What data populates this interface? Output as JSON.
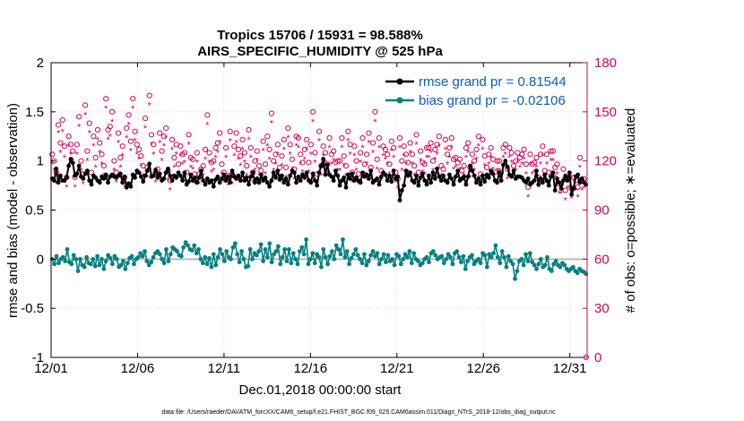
{
  "colors": {
    "rmse": "#000000",
    "bias": "#008080",
    "obs": "#d6005a",
    "zero_line": "#bbbbbb",
    "grid": "#f4c4d4",
    "legend_text": "#0a5cc2"
  },
  "chart_data": {
    "type": "line",
    "title": "Tropics 15706 / 15931 = 98.588%",
    "subtitle": "AIRS_SPECIFIC_HUMIDITY @ 525 hPa",
    "xlabel": "Dec.01,2018 00:00:00 start",
    "ylabel_left": "rmse and bias (model - observation)",
    "ylabel_right": "# of obs: o=possible; ∗=evaluated",
    "footnote": "data file: /Users/raeder/DAI/ATM_forcXX/CAM6_setup/f.e21.FHIST_BGC.f09_025.CAM6assim.011/Diags_NTrS_2018-12/obs_diag_output.nc",
    "xlim": [
      0,
      31
    ],
    "ylim_left": [
      -1,
      2
    ],
    "ylim_right": [
      0,
      180
    ],
    "x_ticks": [
      0,
      5,
      10,
      15,
      20,
      25,
      30
    ],
    "x_tick_labels": [
      "12/01",
      "12/06",
      "12/11",
      "12/16",
      "12/21",
      "12/26",
      "12/31"
    ],
    "y_left_ticks": [
      -1,
      -0.5,
      0,
      0.5,
      1,
      1.5,
      2
    ],
    "y_left_tick_labels": [
      "-1",
      "-0.5",
      "0",
      "0.5",
      "1",
      "1.5",
      "2"
    ],
    "y_right_ticks": [
      0,
      30,
      60,
      90,
      120,
      150,
      180
    ],
    "y_right_tick_labels": [
      "0",
      "30",
      "60",
      "90",
      "120",
      "150",
      "180"
    ],
    "legend": [
      {
        "name": "rmse grand pr = 0.81544",
        "series": "rmse"
      },
      {
        "name": "bias grand pr = -0.02106",
        "series": "bias"
      }
    ],
    "series": [
      {
        "name": "rmse",
        "axis": "left",
        "values": [
          0.82,
          0.8,
          0.92,
          0.78,
          0.85,
          0.8,
          0.8,
          0.83,
          0.95,
          1.02,
          0.98,
          0.85,
          0.87,
          0.95,
          0.84,
          0.82,
          0.87,
          0.9,
          0.8,
          0.76,
          0.85,
          0.83,
          0.8,
          0.78,
          0.84,
          0.82,
          0.86,
          0.78,
          0.84,
          0.86,
          0.84,
          0.83,
          0.85,
          0.87,
          0.78,
          0.84,
          0.73,
          0.77,
          0.74,
          0.86,
          0.83,
          0.9,
          0.88,
          0.84,
          0.79,
          0.85,
          0.9,
          0.97,
          0.84,
          0.85,
          0.91,
          0.83,
          0.87,
          0.8,
          0.82,
          0.88,
          0.92,
          0.85,
          0.8,
          0.85,
          0.83,
          0.88,
          0.85,
          0.8,
          0.88,
          0.76,
          0.79,
          0.86,
          0.8,
          0.83,
          0.78,
          0.83,
          0.9,
          0.8,
          0.76,
          0.82,
          0.78,
          0.8,
          0.74,
          0.81,
          0.84,
          0.78,
          0.82,
          0.86,
          0.8,
          0.84,
          0.78,
          0.9,
          0.84,
          0.82,
          0.85,
          0.8,
          0.88,
          0.8,
          0.83,
          0.76,
          0.84,
          0.88,
          0.78,
          0.82,
          0.78,
          0.86,
          0.8,
          0.83,
          0.78,
          0.74,
          0.8,
          0.88,
          0.83,
          0.9,
          0.81,
          0.85,
          0.78,
          0.82,
          0.76,
          0.85,
          0.9,
          0.88,
          0.78,
          0.84,
          0.8,
          0.86,
          0.83,
          0.88,
          0.8,
          0.78,
          0.87,
          0.8,
          0.75,
          0.88,
          0.95,
          1.02,
          0.86,
          0.96,
          0.86,
          0.84,
          0.8,
          0.9,
          0.85,
          0.75,
          0.8,
          0.83,
          0.73,
          0.86,
          0.82,
          0.87,
          0.8,
          0.83,
          0.8,
          0.78,
          0.88,
          0.84,
          0.86,
          0.82,
          0.9,
          0.78,
          0.8,
          0.82,
          0.76,
          0.84,
          0.88,
          0.86,
          0.8,
          0.85,
          0.79,
          0.9,
          0.82,
          0.84,
          0.6,
          0.7,
          0.75,
          0.9,
          0.85,
          0.88,
          0.8,
          0.78,
          0.85,
          0.75,
          0.83,
          0.87,
          0.8,
          0.76,
          0.85,
          0.78,
          0.88,
          0.82,
          0.92,
          0.84,
          0.8,
          0.85,
          0.8,
          0.78,
          0.86,
          0.82,
          0.76,
          0.84,
          0.9,
          0.8,
          0.82,
          0.84,
          0.76,
          0.84,
          0.95,
          0.9,
          0.85,
          0.78,
          0.82,
          0.76,
          0.85,
          0.79,
          0.86,
          0.83,
          0.9,
          0.87,
          0.8,
          0.78,
          0.88,
          0.8,
          0.96,
          1.0,
          0.94,
          0.86,
          0.84,
          0.9,
          0.82,
          0.84,
          0.84,
          0.83,
          0.8,
          0.78,
          0.82,
          0.76,
          0.78,
          0.8,
          0.9,
          0.76,
          0.82,
          0.78,
          0.86,
          0.8,
          0.75,
          0.84,
          0.88,
          0.7,
          0.82,
          0.78,
          0.72,
          0.8,
          0.85,
          0.8,
          0.88,
          0.66,
          0.72,
          0.84,
          0.86,
          0.78,
          0.82,
          0.78,
          0.76
        ]
      },
      {
        "name": "bias",
        "axis": "left",
        "values": [
          0.0,
          -0.05,
          0.03,
          -0.04,
          0.0,
          0.02,
          -0.02,
          0.1,
          -0.03,
          -0.05,
          0.04,
          0.0,
          -0.12,
          0.0,
          -0.06,
          -0.08,
          0.02,
          -0.04,
          -0.05,
          0.0,
          -0.07,
          0.03,
          -0.06,
          0.0,
          -0.1,
          -0.02,
          0.04,
          0.01,
          -0.05,
          0.03,
          0.0,
          -0.08,
          -0.06,
          -0.02,
          -0.1,
          -0.04,
          0.01,
          0.03,
          -0.05,
          0.0,
          0.02,
          0.06,
          0.03,
          0.08,
          -0.02,
          -0.06,
          -0.03,
          0.02,
          0.06,
          0.08,
          0.05,
          0.0,
          -0.04,
          0.1,
          -0.02,
          0.05,
          0.12,
          0.1,
          0.08,
          0.04,
          0.03,
          0.12,
          0.17,
          0.14,
          0.1,
          0.09,
          0.14,
          0.06,
          0.1,
          0.0,
          -0.04,
          0.02,
          -0.05,
          0.01,
          -0.08,
          0.05,
          -0.06,
          0.02,
          0.1,
          0.05,
          -0.02,
          0.08,
          0.02,
          0.0,
          0.12,
          0.16,
          0.05,
          -0.03,
          0.08,
          0.0,
          -0.08,
          -0.07,
          0.1,
          0.0,
          0.06,
          0.04,
          0.08,
          0.15,
          -0.02,
          0.1,
          0.02,
          0.16,
          -0.03,
          0.05,
          0.08,
          0.13,
          -0.05,
          0.02,
          0.1,
          -0.02,
          0.1,
          -0.04,
          0.06,
          0.0,
          -0.05,
          0.08,
          0.12,
          0.05,
          0.2,
          -0.05,
          0.0,
          0.06,
          -0.04,
          0.05,
          0.02,
          -0.08,
          0.1,
          0.02,
          -0.05,
          0.03,
          0.08,
          0.0,
          0.14,
          0.1,
          0.05,
          0.2,
          0.02,
          0.08,
          -0.05,
          0.01,
          0.05,
          0.1,
          0.04,
          0.0,
          -0.04,
          0.05,
          -0.06,
          -0.02,
          0.04,
          0.08,
          0.03,
          0.06,
          -0.05,
          0.0,
          0.05,
          -0.03,
          0.04,
          -0.02,
          0.0,
          -0.06,
          0.05,
          0.03,
          -0.05,
          0.0,
          0.05,
          0.02,
          0.08,
          -0.04,
          0.06,
          0.0,
          -0.02,
          -0.06,
          -0.04,
          0.0,
          0.02,
          -0.03,
          0.06,
          0.08,
          0.04,
          0.0,
          0.02,
          0.03,
          -0.04,
          0.0,
          0.05,
          0.02,
          -0.05,
          0.06,
          0.08,
          0.02,
          -0.03,
          0.03,
          -0.1,
          -0.02,
          0.02,
          0.04,
          -0.05,
          -0.02,
          0.0,
          -0.04,
          0.06,
          0.04,
          -0.08,
          0.05,
          0.02,
          0.06,
          0.14,
          0.02,
          -0.04,
          0.08,
          0.02,
          -0.08,
          0.03,
          -0.02,
          -0.05,
          -0.2,
          -0.12,
          -0.02,
          0.0,
          -0.06,
          0.05,
          -0.02,
          0.06,
          -0.03,
          -0.06,
          -0.1,
          -0.05,
          0.0,
          -0.08,
          -0.06,
          0.02,
          -0.1,
          -0.12,
          -0.05,
          -0.02,
          -0.06,
          -0.08,
          -0.04,
          -0.06,
          -0.1,
          -0.12,
          -0.1,
          -0.08,
          -0.12,
          -0.14,
          -0.1,
          -0.12,
          -0.13,
          -0.15
        ]
      },
      {
        "name": "possible obs",
        "axis": "right",
        "values": [
          124,
          120,
          113,
          142,
          131,
          145,
          129,
          110,
          135,
          130,
          126,
          110,
          130,
          147,
          120,
          112,
          154,
          126,
          143,
          113,
          135,
          122,
          139,
          131,
          124,
          117,
          158,
          139,
          141,
          150,
          120,
          113,
          137,
          122,
          129,
          110,
          140,
          148,
          132,
          158,
          138,
          130,
          127,
          123,
          117,
          146,
          116,
          160,
          136,
          130,
          113,
          115,
          137,
          126,
          135,
          140,
          114,
          108,
          133,
          122,
          130,
          118,
          129,
          124,
          125,
          113,
          136,
          122,
          121,
          112,
          125,
          112,
          115,
          117,
          127,
          148,
          125,
          119,
          120,
          128,
          131,
          137,
          118,
          113,
          128,
          111,
          138,
          112,
          129,
          137,
          127,
          123,
          133,
          125,
          117,
          139,
          128,
          113,
          120,
          126,
          117,
          114,
          132,
          118,
          135,
          127,
          149,
          120,
          124,
          130,
          116,
          123,
          133,
          116,
          140,
          130,
          121,
          115,
          135,
          134,
          124,
          119,
          127,
          133,
          119,
          130,
          150,
          125,
          112,
          138,
          117,
          129,
          125,
          118,
          134,
          124,
          126,
          119,
          120,
          120,
          134,
          123,
          117,
          138,
          130,
          113,
          129,
          120,
          112,
          125,
          134,
          118,
          124,
          137,
          116,
          131,
          150,
          121,
          134,
          114,
          129,
          127,
          124,
          118,
          132,
          128,
          113,
          109,
          134,
          120,
          129,
          124,
          119,
          131,
          124,
          117,
          136,
          113,
          126,
          119,
          118,
          128,
          128,
          131,
          120,
          127,
          130,
          135,
          117,
          115,
          133,
          124,
          128,
          134,
          121,
          122,
          119,
          121,
          114,
          117,
          128,
          131,
          116,
          124,
          120,
          127,
          135,
          112,
          133,
          123,
          116,
          124,
          128,
          121,
          113,
          120,
          120,
          113,
          128,
          130,
          115,
          128,
          125,
          117,
          120,
          125,
          122,
          124,
          127,
          118,
          104,
          124,
          118,
          119,
          122,
          110,
          124,
          129,
          114,
          124,
          113,
          126,
          126,
          116,
          118,
          106,
          106,
          115,
          102,
          109,
          110,
          103,
          110,
          108,
          104,
          122,
          108,
          109,
          0
        ]
      },
      {
        "name": "evaluated obs",
        "axis": "right",
        "values": [
          118,
          114,
          106,
          137,
          125,
          138,
          122,
          104,
          129,
          124,
          120,
          104,
          124,
          141,
          114,
          106,
          148,
          120,
          137,
          107,
          129,
          116,
          133,
          125,
          118,
          111,
          152,
          133,
          135,
          144,
          114,
          107,
          131,
          116,
          123,
          104,
          134,
          142,
          126,
          152,
          132,
          124,
          121,
          117,
          111,
          140,
          110,
          154,
          130,
          124,
          107,
          109,
          131,
          120,
          129,
          134,
          108,
          102,
          127,
          116,
          124,
          112,
          123,
          118,
          119,
          107,
          130,
          116,
          115,
          106,
          119,
          106,
          109,
          111,
          121,
          142,
          119,
          113,
          114,
          122,
          125,
          131,
          112,
          107,
          122,
          105,
          132,
          106,
          123,
          131,
          121,
          117,
          127,
          119,
          111,
          133,
          122,
          107,
          114,
          120,
          111,
          108,
          126,
          112,
          129,
          121,
          143,
          114,
          118,
          124,
          110,
          117,
          127,
          110,
          134,
          124,
          115,
          109,
          129,
          128,
          118,
          113,
          121,
          127,
          113,
          124,
          144,
          119,
          106,
          132,
          111,
          123,
          119,
          112,
          128,
          118,
          120,
          113,
          114,
          114,
          128,
          117,
          111,
          132,
          124,
          107,
          123,
          114,
          106,
          119,
          128,
          112,
          118,
          131,
          110,
          125,
          144,
          115,
          128,
          108,
          123,
          121,
          118,
          112,
          126,
          122,
          107,
          103,
          128,
          114,
          123,
          118,
          113,
          125,
          118,
          111,
          130,
          107,
          120,
          113,
          112,
          122,
          122,
          125,
          114,
          121,
          124,
          129,
          111,
          109,
          127,
          118,
          122,
          128,
          115,
          116,
          113,
          115,
          108,
          111,
          122,
          125,
          110,
          118,
          114,
          121,
          129,
          106,
          127,
          117,
          110,
          118,
          122,
          115,
          107,
          114,
          114,
          107,
          122,
          124,
          109,
          122,
          119,
          111,
          114,
          119,
          116,
          118,
          121,
          112,
          98,
          118,
          112,
          113,
          116,
          104,
          118,
          123,
          108,
          118,
          107,
          120,
          120,
          110,
          112,
          100,
          100,
          109,
          96,
          103,
          104,
          97,
          104,
          102,
          98,
          116,
          102,
          103,
          0
        ]
      }
    ]
  }
}
